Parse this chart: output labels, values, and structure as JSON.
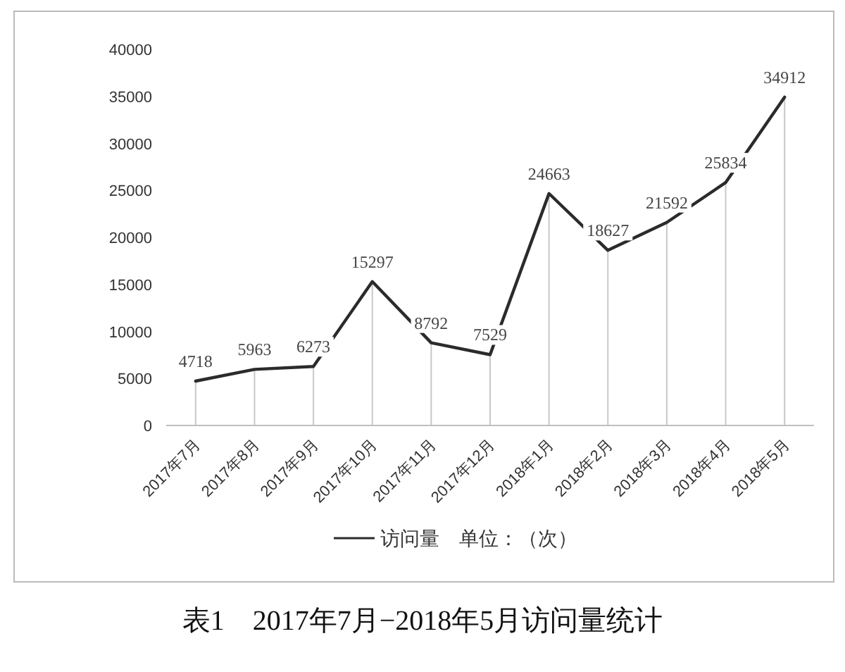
{
  "chart_data": {
    "type": "line",
    "title": "表1　2017年7月−2018年5月访问量统计",
    "categories": [
      "2017年7月",
      "2017年8月",
      "2017年9月",
      "2017年10月",
      "2017年11月",
      "2017年12月",
      "2018年1月",
      "2018年2月",
      "2018年3月",
      "2018年4月",
      "2018年5月"
    ],
    "series": [
      {
        "name": "访问量　单位：（次）",
        "color": "#2b2b2b",
        "values": [
          4718,
          5963,
          6273,
          15297,
          8792,
          7529,
          24663,
          18627,
          21592,
          25834,
          34912
        ]
      }
    ],
    "ylim": [
      0,
      40000
    ],
    "yticks": [
      0,
      5000,
      10000,
      15000,
      20000,
      25000,
      30000,
      35000,
      40000
    ],
    "grid": "x",
    "legend": "bottom",
    "data_labels": true,
    "marker": "none",
    "line_style": "solid"
  }
}
